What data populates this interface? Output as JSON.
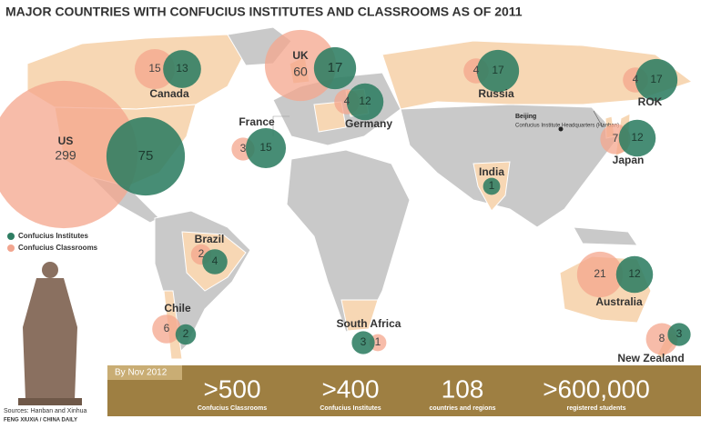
{
  "title": "MAJOR COUNTRIES WITH CONFUCIUS INSTITUTES AND CLASSROOMS AS OF 2011",
  "legend": {
    "institutes": "Confucius Institutes",
    "classrooms": "Confucius Classrooms"
  },
  "countries": [
    {
      "name": "US",
      "institutes": 75,
      "classrooms": 299
    },
    {
      "name": "Canada",
      "institutes": 13,
      "classrooms": 15
    },
    {
      "name": "UK",
      "institutes": 17,
      "classrooms": 60
    },
    {
      "name": "France",
      "institutes": 15,
      "classrooms": 3
    },
    {
      "name": "Germany",
      "institutes": 12,
      "classrooms": 4
    },
    {
      "name": "Russia",
      "institutes": 17,
      "classrooms": 4
    },
    {
      "name": "ROK",
      "institutes": 17,
      "classrooms": 4
    },
    {
      "name": "Japan",
      "institutes": 12,
      "classrooms": 7
    },
    {
      "name": "India",
      "institutes": 1,
      "classrooms": null
    },
    {
      "name": "Brazil",
      "institutes": 4,
      "classrooms": 2
    },
    {
      "name": "Chile",
      "institutes": 2,
      "classrooms": 6
    },
    {
      "name": "South Africa",
      "institutes": 3,
      "classrooms": 1
    },
    {
      "name": "Australia",
      "institutes": 12,
      "classrooms": 21
    },
    {
      "name": "New Zealand",
      "institutes": 3,
      "classrooms": 8
    }
  ],
  "beijing": {
    "label": "Beijing",
    "note": "Confucius Institute Headquarters (Hanban)"
  },
  "stats": {
    "heading": "By Nov 2012",
    "items": [
      {
        "value": ">500",
        "label": "Confucius Classrooms"
      },
      {
        "value": ">400",
        "label": "Confucius Institutes"
      },
      {
        "value": "108",
        "label": "countries and regions"
      },
      {
        "value": ">600,000",
        "label": "registered students"
      }
    ]
  },
  "sources": "Sources: Hanban and Xinhua",
  "credit": "FENG XIUXIA / CHINA DAILY"
}
